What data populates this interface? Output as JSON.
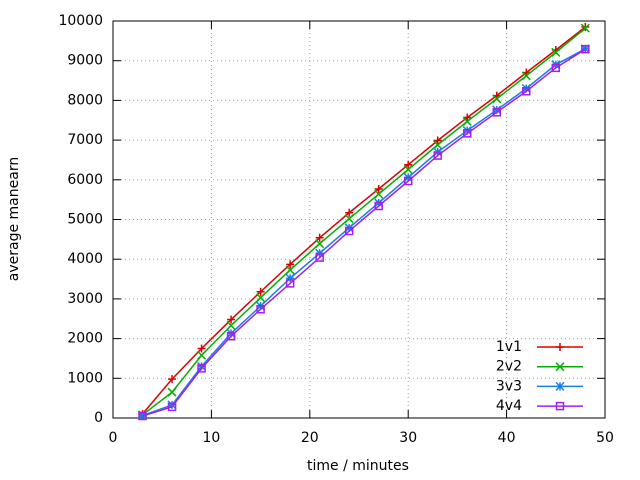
{
  "chart_data": {
    "type": "line",
    "x_label": "time / minutes",
    "y_label": "average manearn",
    "x": [
      3,
      6,
      9,
      12,
      15,
      18,
      21,
      24,
      27,
      30,
      33,
      36,
      39,
      42,
      45,
      48
    ],
    "series": [
      {
        "name": "1v1",
        "color": "#dd0000",
        "marker": "plus",
        "values": [
          100,
          980,
          1750,
          2480,
          3180,
          3870,
          4540,
          5170,
          5770,
          6380,
          6990,
          7570,
          8120,
          8700,
          9270,
          9850
        ]
      },
      {
        "name": "2v2",
        "color": "#00b000",
        "marker": "cross",
        "values": [
          80,
          650,
          1580,
          2330,
          3030,
          3730,
          4390,
          5020,
          5640,
          6260,
          6880,
          7470,
          8040,
          8620,
          9210,
          9820
        ]
      },
      {
        "name": "3v3",
        "color": "#1a7fe0",
        "marker": "star",
        "values": [
          60,
          330,
          1300,
          2130,
          2820,
          3520,
          4150,
          4790,
          5420,
          6060,
          6700,
          7240,
          7760,
          8300,
          8900,
          9300
        ]
      },
      {
        "name": "4v4",
        "color": "#a020f0",
        "marker": "square",
        "values": [
          50,
          280,
          1250,
          2060,
          2740,
          3390,
          4040,
          4710,
          5340,
          5970,
          6610,
          7170,
          7700,
          8230,
          8820,
          9290
        ]
      }
    ],
    "xlim": [
      0,
      50
    ],
    "xticks": [
      0,
      10,
      20,
      30,
      40,
      50
    ],
    "ylim": [
      0,
      10000
    ],
    "yticks": [
      0,
      1000,
      2000,
      3000,
      4000,
      5000,
      6000,
      7000,
      8000,
      9000,
      10000
    ],
    "grid": true,
    "legend": "bottom-right"
  }
}
